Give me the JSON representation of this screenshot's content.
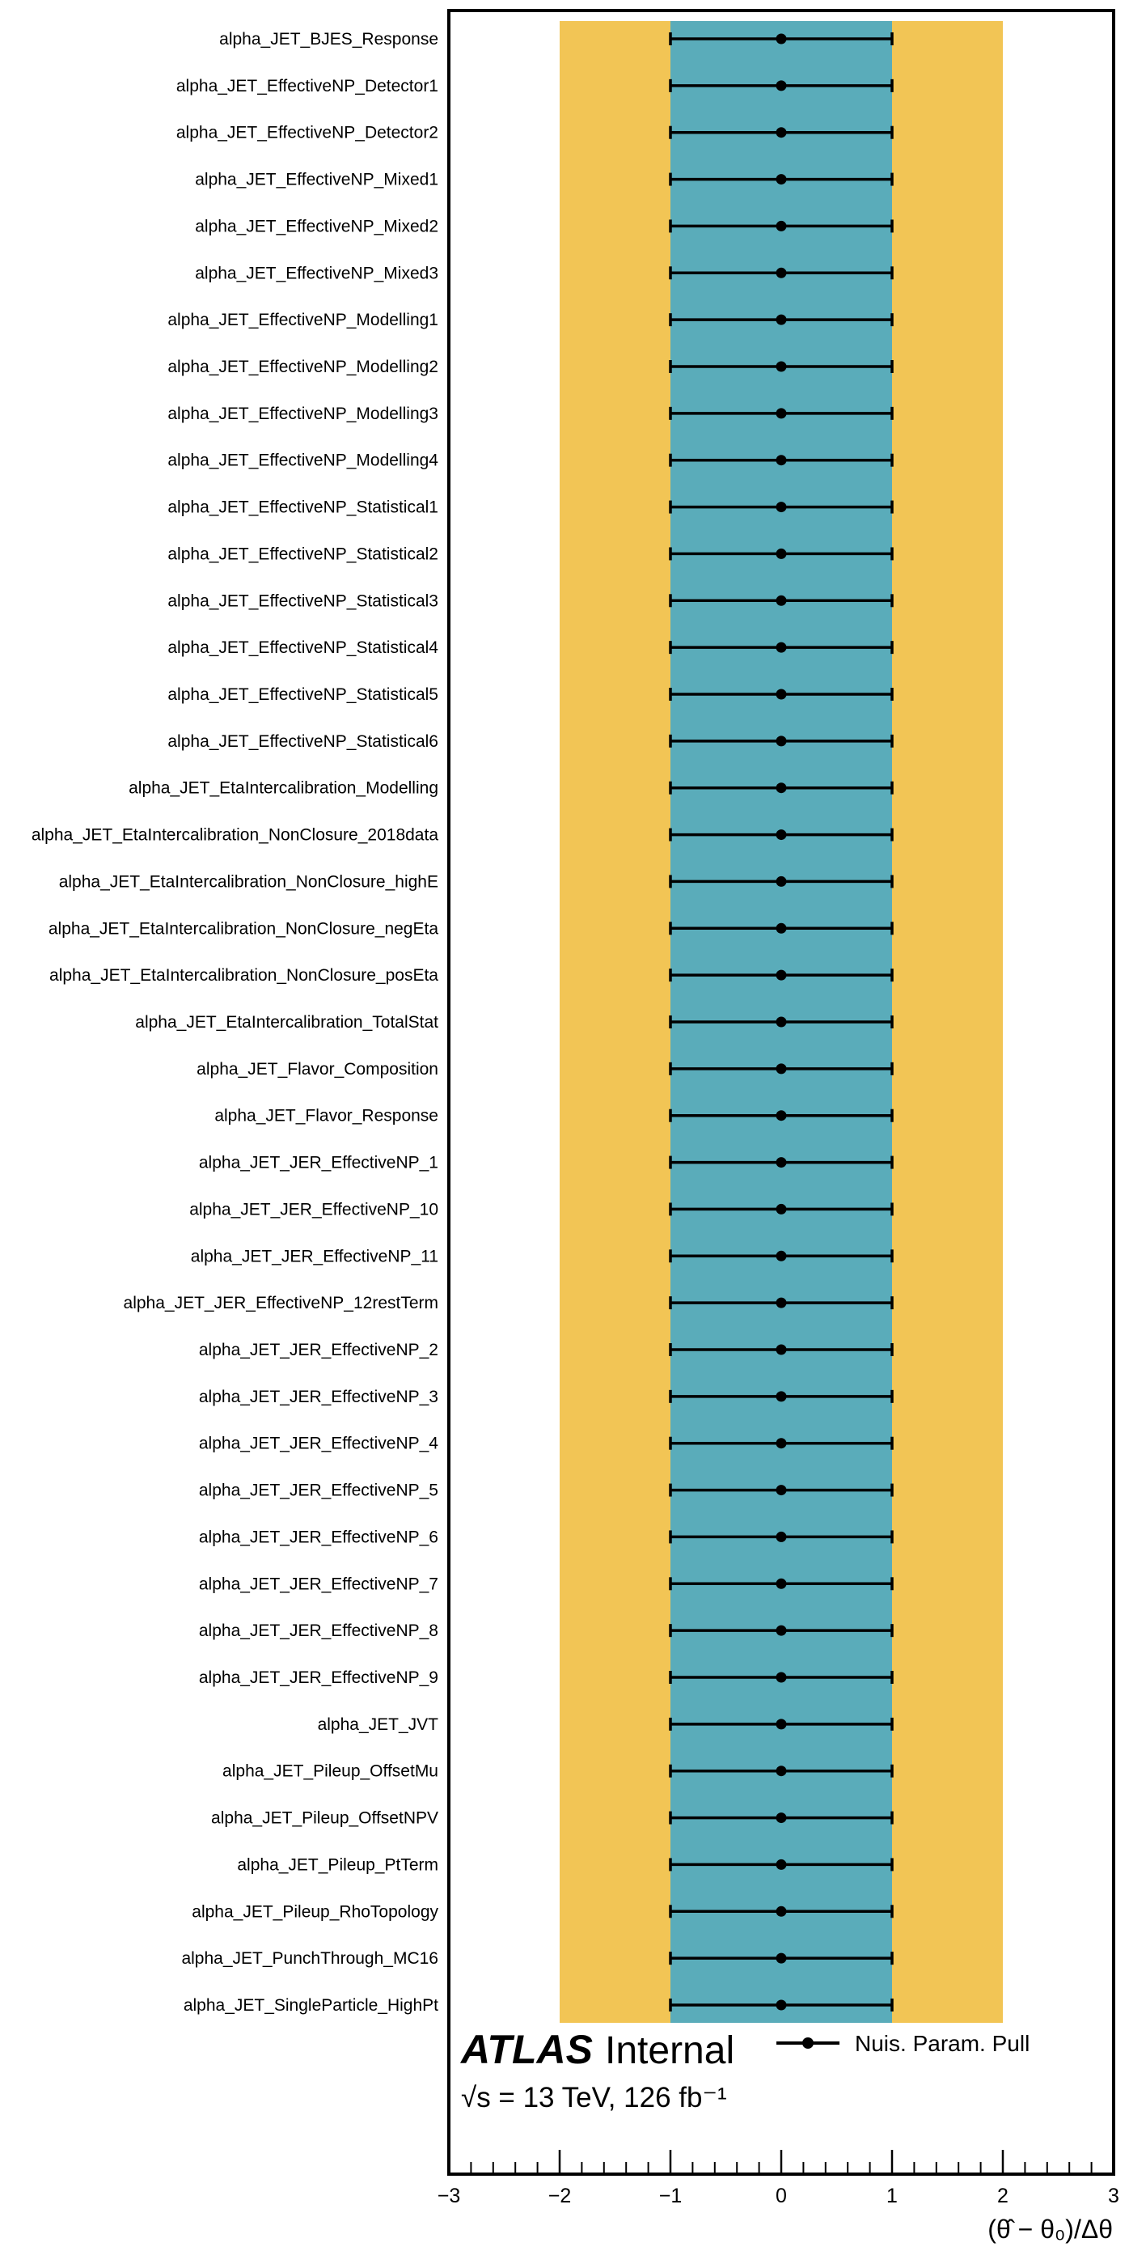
{
  "chart_data": {
    "type": "scatter",
    "labels": {
      "atlas": "ATLAS",
      "status": "Internal",
      "energy": "√s = 13 TeV, 126 fb⁻¹",
      "xlabel": "(θ̂ − θ₀)/Δθ"
    },
    "xlim": [
      -3,
      3
    ],
    "xticks": [
      -3,
      -2,
      -1,
      0,
      1,
      2,
      3
    ],
    "tick_labels": [
      "−3",
      "−2",
      "−1",
      "0",
      "1",
      "2",
      "3"
    ],
    "bands": [
      {
        "role": "2-sigma",
        "range": [
          -2,
          2
        ],
        "color": "#f2c555"
      },
      {
        "role": "1-sigma",
        "range": [
          -1,
          1
        ],
        "color": "#5aacba"
      }
    ],
    "legend": {
      "label": "Nuis. Param. Pull",
      "placement": "top-right"
    },
    "series": [
      {
        "name": "Nuis. Param. Pull",
        "points": [
          {
            "label": "alpha_JET_BJES_Response",
            "value": 0,
            "err_low": -1,
            "err_high": 1
          },
          {
            "label": "alpha_JET_EffectiveNP_Detector1",
            "value": 0,
            "err_low": -1,
            "err_high": 1
          },
          {
            "label": "alpha_JET_EffectiveNP_Detector2",
            "value": 0,
            "err_low": -1,
            "err_high": 1
          },
          {
            "label": "alpha_JET_EffectiveNP_Mixed1",
            "value": 0,
            "err_low": -1,
            "err_high": 1
          },
          {
            "label": "alpha_JET_EffectiveNP_Mixed2",
            "value": 0,
            "err_low": -1,
            "err_high": 1
          },
          {
            "label": "alpha_JET_EffectiveNP_Mixed3",
            "value": 0,
            "err_low": -1,
            "err_high": 1
          },
          {
            "label": "alpha_JET_EffectiveNP_Modelling1",
            "value": 0,
            "err_low": -1,
            "err_high": 1
          },
          {
            "label": "alpha_JET_EffectiveNP_Modelling2",
            "value": 0,
            "err_low": -1,
            "err_high": 1
          },
          {
            "label": "alpha_JET_EffectiveNP_Modelling3",
            "value": 0,
            "err_low": -1,
            "err_high": 1
          },
          {
            "label": "alpha_JET_EffectiveNP_Modelling4",
            "value": 0,
            "err_low": -1,
            "err_high": 1
          },
          {
            "label": "alpha_JET_EffectiveNP_Statistical1",
            "value": 0,
            "err_low": -1,
            "err_high": 1
          },
          {
            "label": "alpha_JET_EffectiveNP_Statistical2",
            "value": 0,
            "err_low": -1,
            "err_high": 1
          },
          {
            "label": "alpha_JET_EffectiveNP_Statistical3",
            "value": 0,
            "err_low": -1,
            "err_high": 1
          },
          {
            "label": "alpha_JET_EffectiveNP_Statistical4",
            "value": 0,
            "err_low": -1,
            "err_high": 1
          },
          {
            "label": "alpha_JET_EffectiveNP_Statistical5",
            "value": 0,
            "err_low": -1,
            "err_high": 1
          },
          {
            "label": "alpha_JET_EffectiveNP_Statistical6",
            "value": 0,
            "err_low": -1,
            "err_high": 1
          },
          {
            "label": "alpha_JET_EtaIntercalibration_Modelling",
            "value": 0,
            "err_low": -1,
            "err_high": 1
          },
          {
            "label": "alpha_JET_EtaIntercalibration_NonClosure_2018data",
            "value": 0,
            "err_low": -1,
            "err_high": 1
          },
          {
            "label": "alpha_JET_EtaIntercalibration_NonClosure_highE",
            "value": 0,
            "err_low": -1,
            "err_high": 1
          },
          {
            "label": "alpha_JET_EtaIntercalibration_NonClosure_negEta",
            "value": 0,
            "err_low": -1,
            "err_high": 1
          },
          {
            "label": "alpha_JET_EtaIntercalibration_NonClosure_posEta",
            "value": 0,
            "err_low": -1,
            "err_high": 1
          },
          {
            "label": "alpha_JET_EtaIntercalibration_TotalStat",
            "value": 0,
            "err_low": -1,
            "err_high": 1
          },
          {
            "label": "alpha_JET_Flavor_Composition",
            "value": 0,
            "err_low": -1,
            "err_high": 1
          },
          {
            "label": "alpha_JET_Flavor_Response",
            "value": 0,
            "err_low": -1,
            "err_high": 1
          },
          {
            "label": "alpha_JET_JER_EffectiveNP_1",
            "value": 0,
            "err_low": -1,
            "err_high": 1
          },
          {
            "label": "alpha_JET_JER_EffectiveNP_10",
            "value": 0,
            "err_low": -1,
            "err_high": 1
          },
          {
            "label": "alpha_JET_JER_EffectiveNP_11",
            "value": 0,
            "err_low": -1,
            "err_high": 1
          },
          {
            "label": "alpha_JET_JER_EffectiveNP_12restTerm",
            "value": 0,
            "err_low": -1,
            "err_high": 1
          },
          {
            "label": "alpha_JET_JER_EffectiveNP_2",
            "value": 0,
            "err_low": -1,
            "err_high": 1
          },
          {
            "label": "alpha_JET_JER_EffectiveNP_3",
            "value": 0,
            "err_low": -1,
            "err_high": 1
          },
          {
            "label": "alpha_JET_JER_EffectiveNP_4",
            "value": 0,
            "err_low": -1,
            "err_high": 1
          },
          {
            "label": "alpha_JET_JER_EffectiveNP_5",
            "value": 0,
            "err_low": -1,
            "err_high": 1
          },
          {
            "label": "alpha_JET_JER_EffectiveNP_6",
            "value": 0,
            "err_low": -1,
            "err_high": 1
          },
          {
            "label": "alpha_JET_JER_EffectiveNP_7",
            "value": 0,
            "err_low": -1,
            "err_high": 1
          },
          {
            "label": "alpha_JET_JER_EffectiveNP_8",
            "value": 0,
            "err_low": -1,
            "err_high": 1
          },
          {
            "label": "alpha_JET_JER_EffectiveNP_9",
            "value": 0,
            "err_low": -1,
            "err_high": 1
          },
          {
            "label": "alpha_JET_JVT",
            "value": 0,
            "err_low": -1,
            "err_high": 1
          },
          {
            "label": "alpha_JET_Pileup_OffsetMu",
            "value": 0,
            "err_low": -1,
            "err_high": 1
          },
          {
            "label": "alpha_JET_Pileup_OffsetNPV",
            "value": 0,
            "err_low": -1,
            "err_high": 1
          },
          {
            "label": "alpha_JET_Pileup_PtTerm",
            "value": 0,
            "err_low": -1,
            "err_high": 1
          },
          {
            "label": "alpha_JET_Pileup_RhoTopology",
            "value": 0,
            "err_low": -1,
            "err_high": 1
          },
          {
            "label": "alpha_JET_PunchThrough_MC16",
            "value": 0,
            "err_low": -1,
            "err_high": 1
          },
          {
            "label": "alpha_JET_SingleParticle_HighPt",
            "value": 0,
            "err_low": -1,
            "err_high": 1
          }
        ]
      }
    ]
  }
}
